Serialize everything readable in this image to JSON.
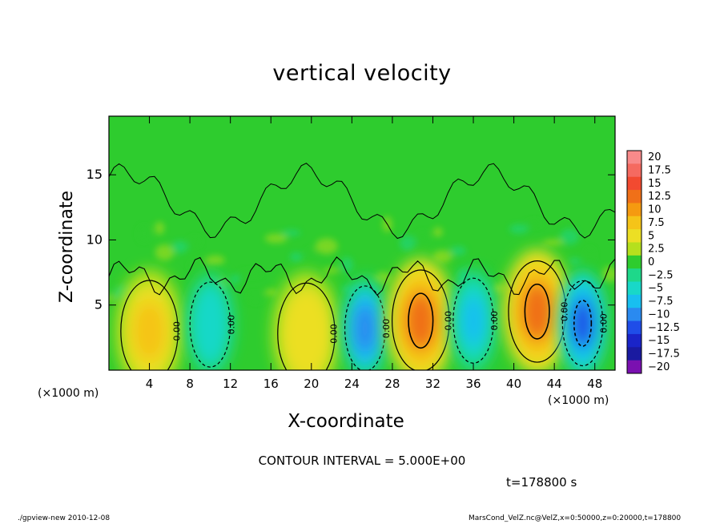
{
  "title": "vertical velocity",
  "xlabel": "X-coordinate",
  "ylabel": "Z-coordinate",
  "x_unit_left": "(×1000 m)",
  "x_unit_right": "(×1000 m)",
  "contour_text": "CONTOUR INTERVAL = 5.000E+00",
  "time_text": "t=178800 s",
  "footer_left": "./gpview-new  2010-12-08",
  "footer_right": "MarsCond_VelZ.nc@VelZ,x=0:50000,z=0:20000,t=178800",
  "chart_data": {
    "type": "heatmap",
    "title": "vertical velocity",
    "xlabel": "X-coordinate",
    "ylabel": "Z-coordinate",
    "x_unit": "(×1000 m)",
    "xlim": [
      0,
      50
    ],
    "ylim": [
      0,
      19.5
    ],
    "xticks": [
      4,
      8,
      12,
      16,
      20,
      24,
      28,
      32,
      36,
      40,
      44,
      48
    ],
    "yticks": [
      5,
      10,
      15
    ],
    "grid": false,
    "contour_interval": 5.0,
    "contour_labels": [
      "0.00",
      "0.00",
      "0.00",
      "0.00",
      "0.00",
      "0.00",
      "0.00",
      "0.00"
    ],
    "colorbar": {
      "labels": [
        "20",
        "17.5",
        "15",
        "12.5",
        "10",
        "7.5",
        "5",
        "2.5",
        "0",
        "−2.5",
        "−5",
        "−7.5",
        "−10",
        "−12.5",
        "−15",
        "−17.5",
        "−20"
      ],
      "colors": [
        "#f88a8a",
        "#f56a60",
        "#f24a30",
        "#f07018",
        "#f59a10",
        "#f5c418",
        "#ecdf24",
        "#b5e01d",
        "#2ecc2e",
        "#1ed88a",
        "#18d8c8",
        "#18bff0",
        "#2a8af0",
        "#1f4de8",
        "#1a24c8",
        "#1a1aa0",
        "#7a10b0"
      ]
    },
    "cells": [
      {
        "x": 4.0,
        "z": 3.0,
        "value": 7,
        "label": "updraft"
      },
      {
        "x": 10.0,
        "z": 3.5,
        "value": -6,
        "label": "downdraft"
      },
      {
        "x": 19.5,
        "z": 2.8,
        "value": 6,
        "label": "updraft"
      },
      {
        "x": 25.3,
        "z": 3.2,
        "value": -9,
        "label": "downdraft"
      },
      {
        "x": 30.8,
        "z": 3.8,
        "value": 12,
        "label": "updraft"
      },
      {
        "x": 36.0,
        "z": 3.8,
        "value": -7,
        "label": "downdraft"
      },
      {
        "x": 42.3,
        "z": 4.5,
        "value": 12,
        "label": "updraft"
      },
      {
        "x": 46.8,
        "z": 3.6,
        "value": -12,
        "label": "downdraft"
      }
    ]
  }
}
